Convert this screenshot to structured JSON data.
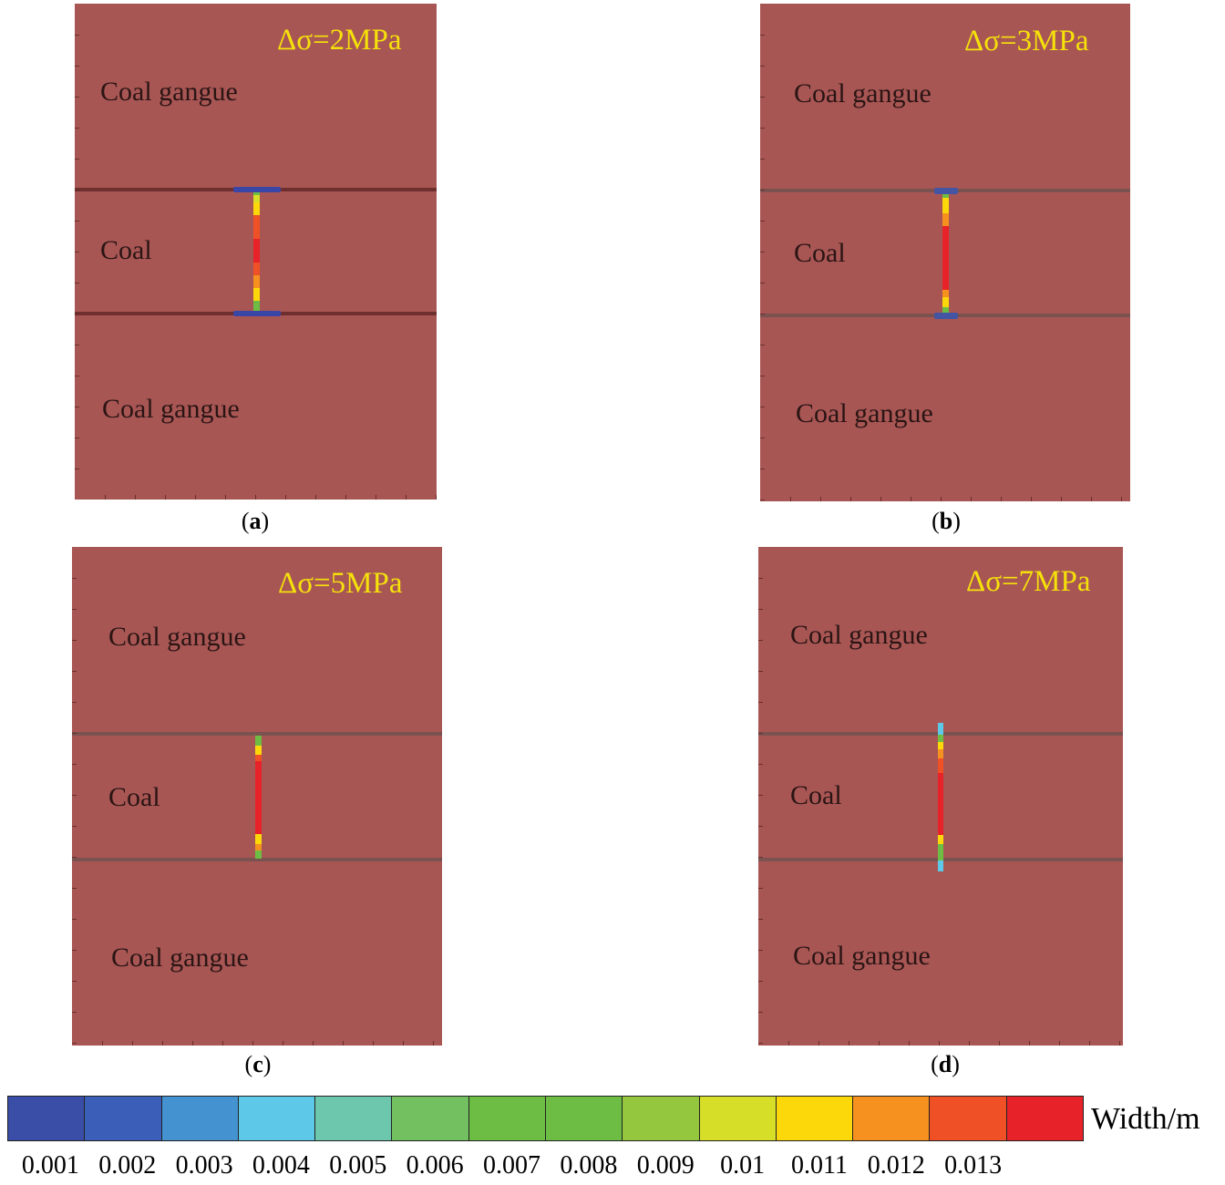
{
  "figure": {
    "panels": [
      {
        "id": "a",
        "caption_letter": "a",
        "delta": "Δσ=2MPa",
        "top_label": "Coal gangue",
        "middle_label": "Coal",
        "bottom_label": "Coal gangue"
      },
      {
        "id": "b",
        "caption_letter": "b",
        "delta": "Δσ=3MPa",
        "top_label": "Coal gangue",
        "middle_label": "Coal",
        "bottom_label": "Coal gangue"
      },
      {
        "id": "c",
        "caption_letter": "c",
        "delta": "Δσ=5MPa",
        "top_label": "Coal gangue",
        "middle_label": "Coal",
        "bottom_label": "Coal gangue"
      },
      {
        "id": "d",
        "caption_letter": "d",
        "delta": "Δσ=7MPa",
        "top_label": "Coal gangue",
        "middle_label": "Coal",
        "bottom_label": "Coal gangue"
      }
    ],
    "colorbar": {
      "title": "Width/m",
      "ticks": [
        "0.001",
        "0.002",
        "0.003",
        "0.004",
        "0.005",
        "0.006",
        "0.007",
        "0.008",
        "0.009",
        "0.01",
        "0.011",
        "0.012",
        "0.013"
      ],
      "colors": [
        "#3a4ea8",
        "#3b5fb8",
        "#4592d0",
        "#5ec8e8",
        "#6cc7ac",
        "#72c060",
        "#6dbd45",
        "#6dbd45",
        "#94c63e",
        "#d7de28",
        "#fcd80a",
        "#f6901f",
        "#ef5026",
        "#e82229"
      ]
    }
  }
}
